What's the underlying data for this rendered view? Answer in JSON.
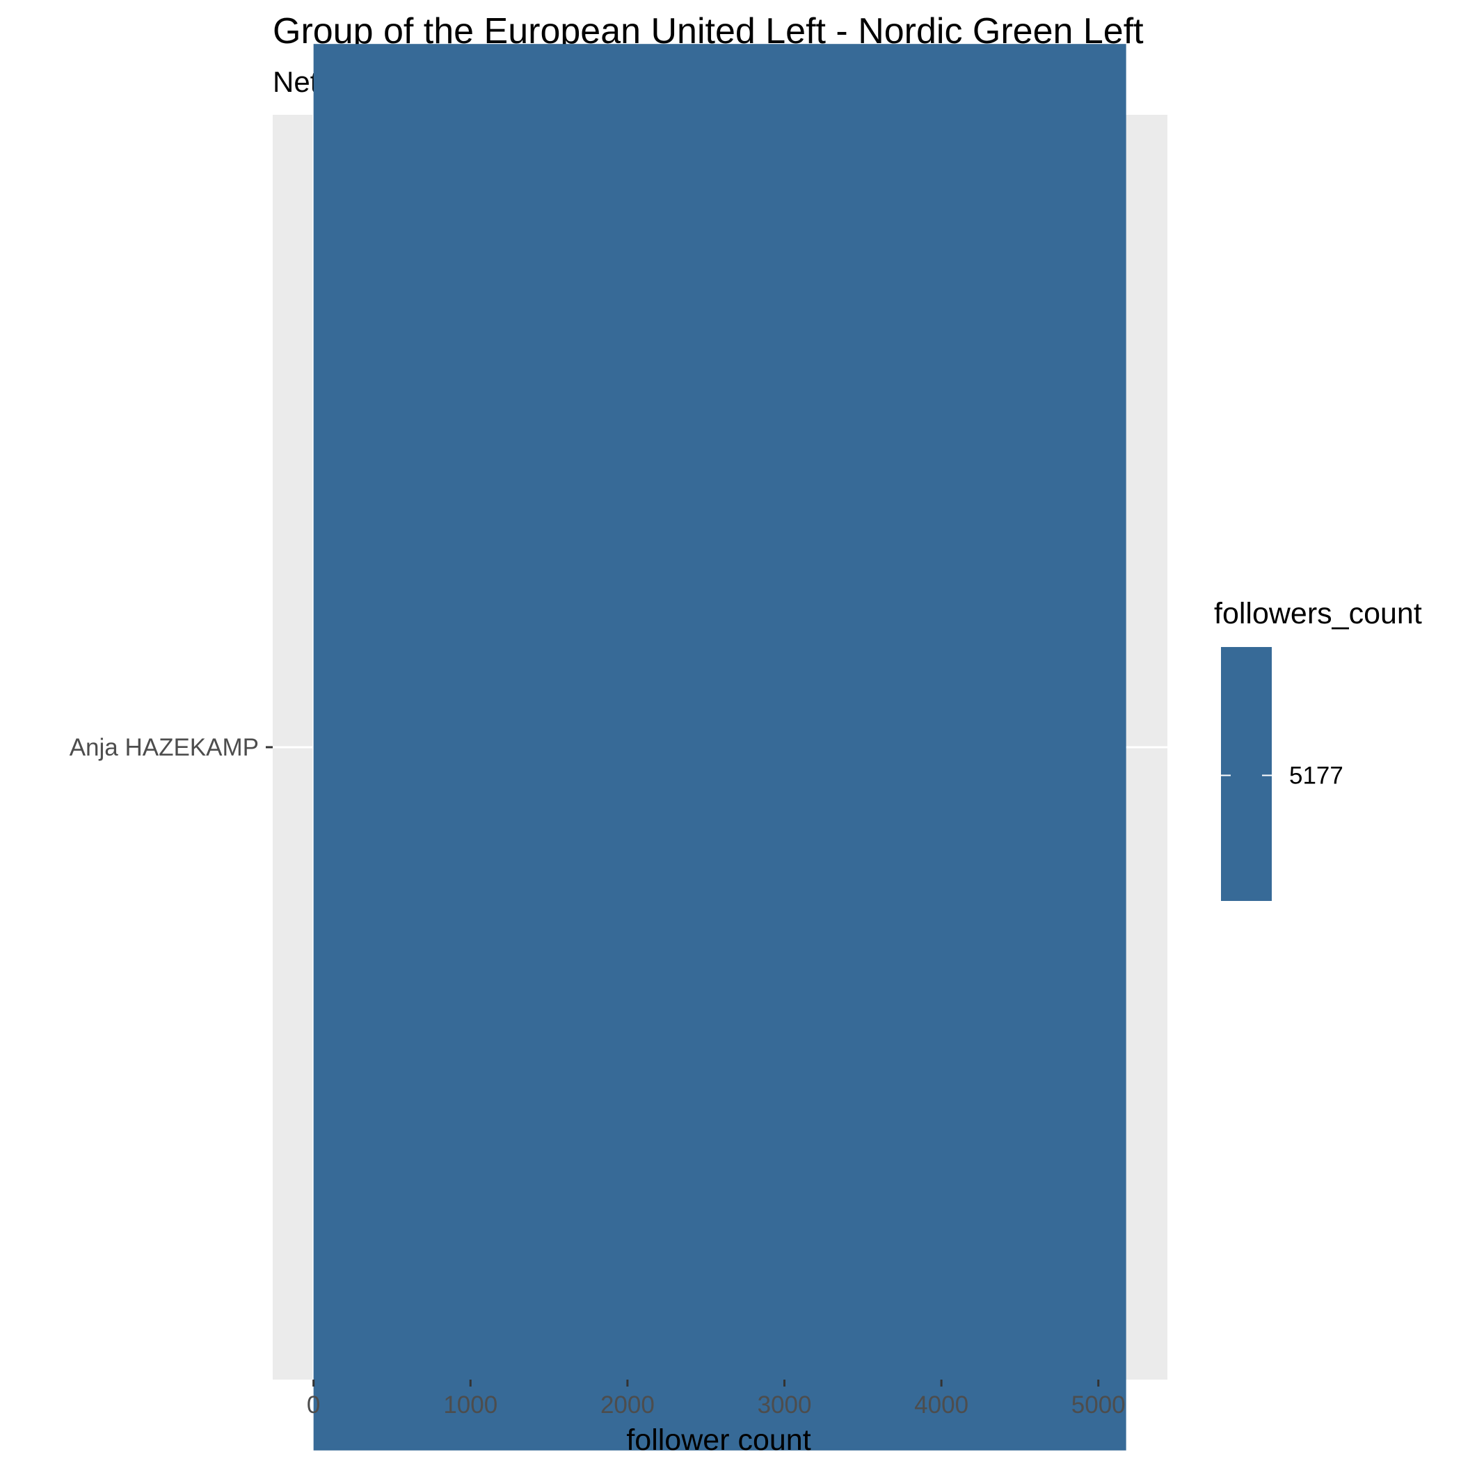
{
  "chart_data": {
    "type": "bar",
    "orientation": "horizontal",
    "title": "Group of the European United Left - Nordic Green Left",
    "subtitle": "Netherlands",
    "xlabel": "follower count",
    "ylabel": "",
    "categories": [
      "Anja HAZEKAMP"
    ],
    "values": [
      5177
    ],
    "xlim": [
      -260,
      5440
    ],
    "x_ticks": [
      0,
      1000,
      2000,
      3000,
      4000,
      5000
    ],
    "x_tick_labels": [
      "0",
      "1000",
      "2000",
      "3000",
      "4000",
      "5000"
    ],
    "x_minor_ticks": [
      500,
      1500,
      2500,
      3500,
      4500
    ],
    "grid": true,
    "legend": {
      "title": "followers_count",
      "labels": [
        "5177"
      ],
      "placement": "right"
    },
    "colors": {
      "bar": "#376a97",
      "panel": "#ebebeb",
      "grid": "#ffffff"
    }
  }
}
